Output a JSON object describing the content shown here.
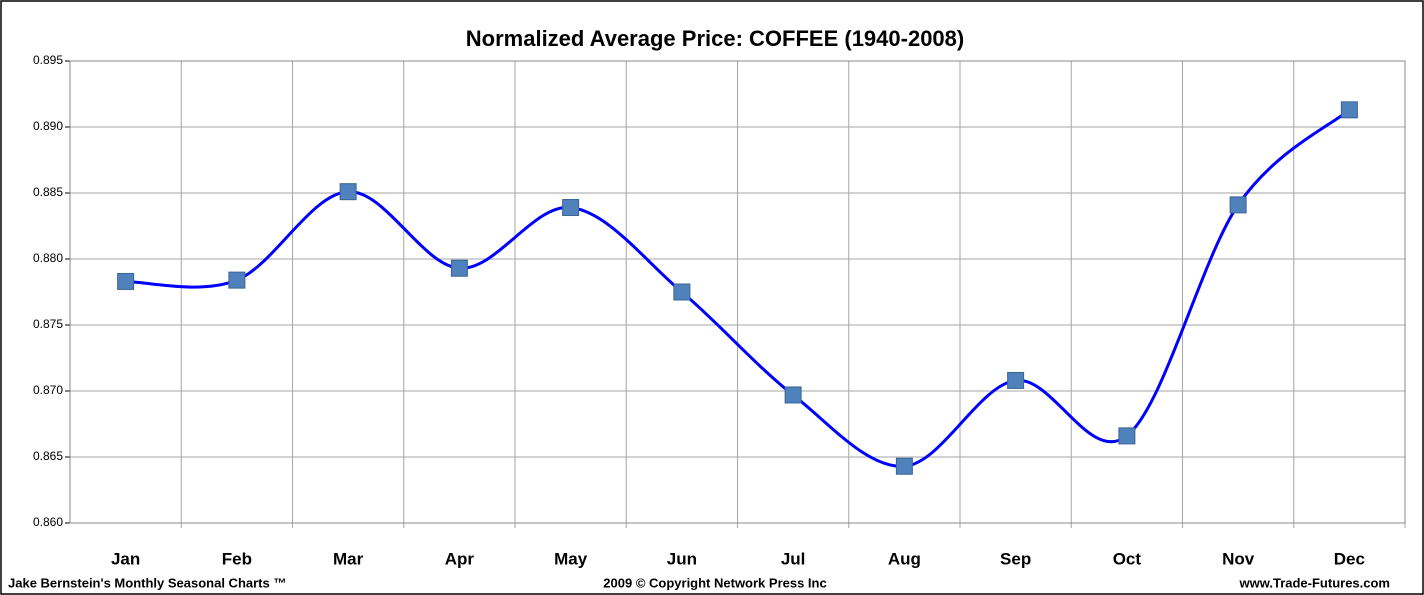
{
  "chart_data": {
    "type": "line",
    "title": "Normalized Average Price:  COFFEE  (1940-2008)",
    "categories": [
      "Jan",
      "Feb",
      "Mar",
      "Apr",
      "May",
      "Jun",
      "Jul",
      "Aug",
      "Sep",
      "Oct",
      "Nov",
      "Dec"
    ],
    "series": [
      {
        "name": "COFFEE",
        "color": "#0000ff",
        "marker_color": "#4f81bd",
        "values": [
          0.8783,
          0.8784,
          0.8851,
          0.8793,
          0.8839,
          0.8775,
          0.8697,
          0.8643,
          0.8708,
          0.8666,
          0.8841,
          0.8913
        ]
      }
    ],
    "ylim": [
      0.86,
      0.895
    ],
    "yticks": [
      {
        "value": 0.86,
        "label": "0.860"
      },
      0.865,
      {
        "value": 0.87,
        "label": "0.870"
      },
      0.875,
      {
        "value": 0.88,
        "label": "0.880"
      },
      0.885,
      {
        "value": 0.89,
        "label": "0.890"
      },
      0.895
    ],
    "grid": true,
    "footer_left": "Jake Bernstein's  Monthly Seasonal  Charts ™",
    "footer_center": "2009  © Copyright Network Press Inc",
    "footer_right": "www.Trade-Futures.com"
  }
}
